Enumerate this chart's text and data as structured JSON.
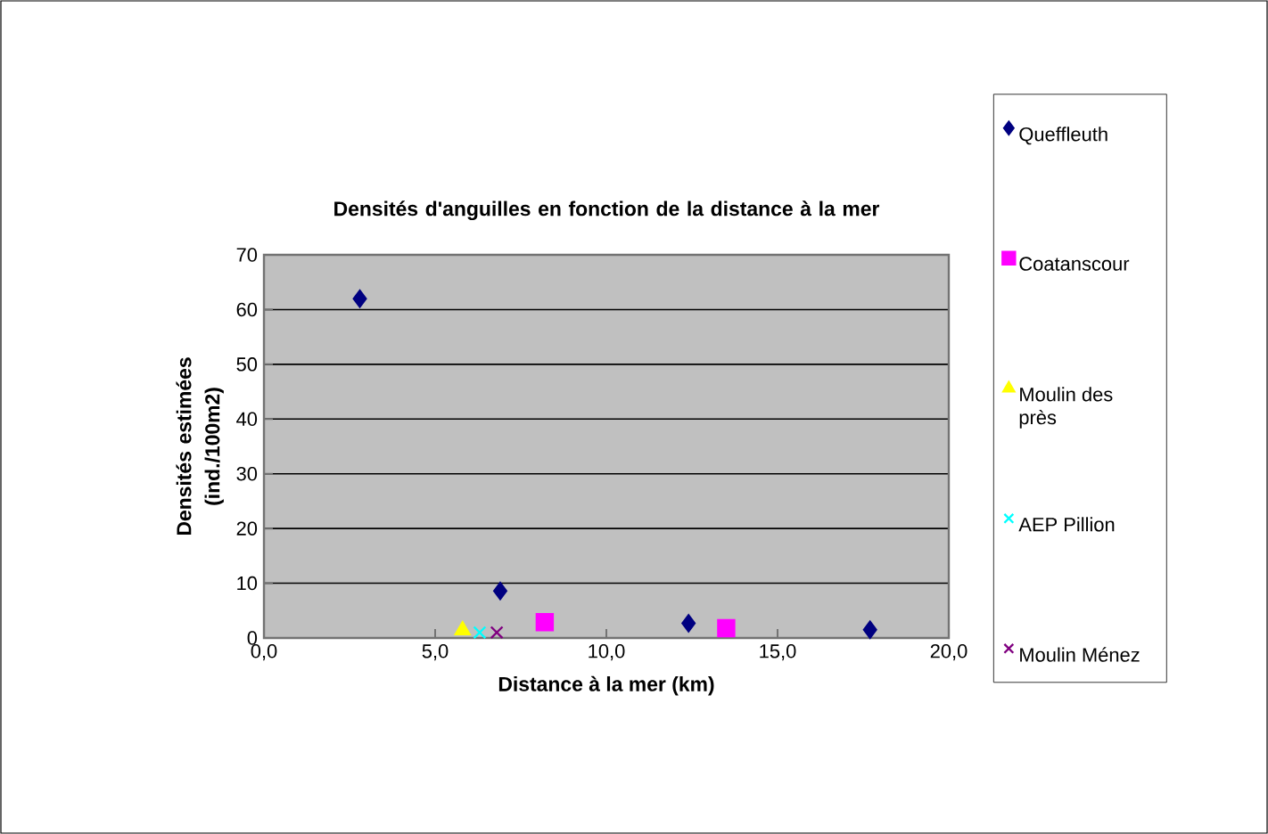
{
  "chart_data": {
    "type": "scatter",
    "title": "Densités d'anguilles en fonction de la distance à la mer",
    "xlabel": "Distance à la mer (km)",
    "ylabel": "Densités estimées (ind./100m2)",
    "xlim": [
      0,
      20
    ],
    "ylim": [
      0,
      70
    ],
    "xticks": [
      {
        "value": 0,
        "label": "0,0"
      },
      {
        "value": 5,
        "label": "5,0"
      },
      {
        "value": 10,
        "label": "10,0"
      },
      {
        "value": 15,
        "label": "15,0"
      },
      {
        "value": 20,
        "label": "20,0"
      }
    ],
    "yticks": [
      0,
      10,
      20,
      30,
      40,
      50,
      60,
      70
    ],
    "grid": "y",
    "legend": "right",
    "series": [
      {
        "name": "Queffleuth",
        "color": "#000080",
        "marker": "diamond",
        "x": [
          2.8,
          6.9,
          12.4,
          17.7
        ],
        "values": [
          62,
          8.6,
          2.7,
          1.5
        ]
      },
      {
        "name": "Coatanscour",
        "color": "#ff00ff",
        "marker": "square",
        "x": [
          8.2,
          13.5
        ],
        "values": [
          2.9,
          1.8
        ]
      },
      {
        "name": "Moulin des près",
        "color": "#ffff00",
        "marker": "triangle",
        "x": [
          5.8
        ],
        "values": [
          1.4
        ]
      },
      {
        "name": "AEP Pillion",
        "color": "#00ffff",
        "marker": "cross",
        "x": [
          6.3
        ],
        "values": [
          1
        ]
      },
      {
        "name": "Moulin Ménez",
        "color": "#800080",
        "marker": "cross",
        "x": [
          6.8
        ],
        "values": [
          1
        ]
      }
    ]
  }
}
